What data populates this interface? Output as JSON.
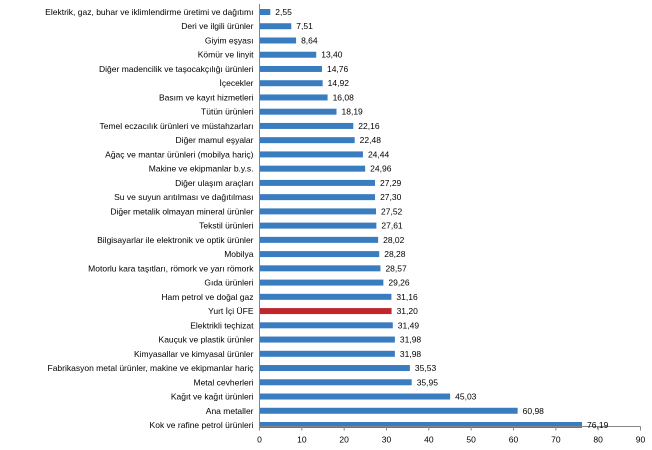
{
  "chart_data": {
    "type": "bar",
    "orientation": "horizontal",
    "title": "",
    "xlabel": "",
    "ylabel": "",
    "xlim": [
      0,
      90
    ],
    "x_ticks": [
      0,
      10,
      20,
      30,
      40,
      50,
      60,
      70,
      80,
      90
    ],
    "grid": false,
    "categories": [
      "Elektrik, gaz, buhar ve iklimlendirme üretimi ve dağıtımı",
      "Deri ve ilgili ürünler",
      "Giyim eşyası",
      "Kömür ve linyit",
      "Diğer madencilik ve taşocakçılığı ürünleri",
      "İçecekler",
      "Basım ve kayıt hizmetleri",
      "Tütün ürünleri",
      "Temel eczacılık ürünleri ve müstahzarları",
      "Diğer mamul eşyalar",
      "Ağaç ve mantar ürünleri (mobilya hariç)",
      "Makine ve ekipmanlar b.y.s.",
      "Diğer ulaşım araçları",
      "Su ve suyun arıtılması ve dağıtılması",
      "Diğer metalik olmayan mineral ürünler",
      "Tekstil ürünleri",
      "Bilgisayarlar ile elektronik ve optik ürünler",
      "Mobilya",
      "Motorlu kara taşıtları, römork ve yarı römork",
      "Gıda ürünleri",
      "Ham petrol ve doğal gaz",
      "Yurt İçi ÜFE",
      "Elektrikli teçhizat",
      "Kauçuk ve plastik ürünler",
      "Kimyasallar ve kimyasal ürünler",
      "Fabrikasyon metal ürünler, makine ve ekipmanlar hariç",
      "Metal cevherleri",
      "Kağıt ve kağıt ürünleri",
      "Ana metaller",
      "Kok ve rafine petrol ürünleri"
    ],
    "values": [
      2.55,
      7.51,
      8.64,
      13.4,
      14.76,
      14.92,
      16.08,
      18.19,
      22.16,
      22.48,
      24.44,
      24.96,
      27.29,
      27.3,
      27.52,
      27.61,
      28.02,
      28.28,
      28.57,
      29.26,
      31.16,
      31.2,
      31.49,
      31.98,
      31.98,
      35.53,
      35.95,
      45.03,
      60.98,
      76.19
    ],
    "value_labels": [
      "2,55",
      "7,51",
      "8,64",
      "13,40",
      "14,76",
      "14,92",
      "16,08",
      "18,19",
      "22,16",
      "22,48",
      "24,44",
      "24,96",
      "27,29",
      "27,30",
      "27,52",
      "27,61",
      "28,02",
      "28,28",
      "28,57",
      "29,26",
      "31,16",
      "31,20",
      "31,49",
      "31,98",
      "31,98",
      "35,53",
      "35,95",
      "45,03",
      "60,98",
      "76,19"
    ],
    "highlight_category": "Yurt İçi ÜFE",
    "colors": {
      "bar": "#3a7cc0",
      "highlight": "#c0272d",
      "axis": "#868686"
    }
  }
}
